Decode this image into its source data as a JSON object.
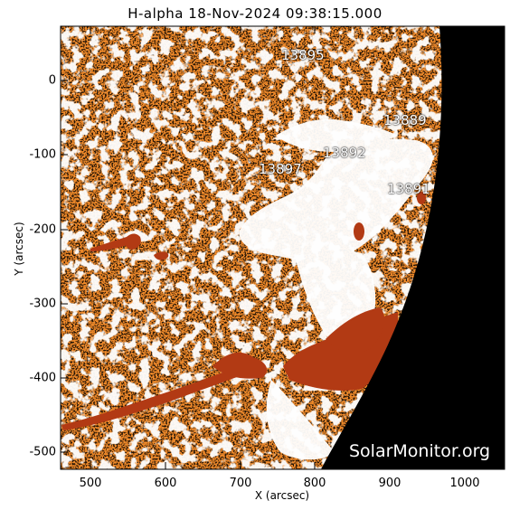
{
  "title": "H-alpha 18-Nov-2024 09:38:15.000",
  "axes": {
    "xlabel": "X (arcsec)",
    "ylabel": "Y (arcsec)",
    "xticks": [
      "500",
      "600",
      "700",
      "800",
      "900",
      "1000"
    ],
    "yticks": [
      "0",
      "-100",
      "-200",
      "-300",
      "-400",
      "-500"
    ]
  },
  "regions": [
    {
      "label": "13895"
    },
    {
      "label": "13889"
    },
    {
      "label": "13892"
    },
    {
      "label": "13897"
    },
    {
      "label": "13891"
    }
  ],
  "watermark": "SolarMonitor.org",
  "colors": {
    "disk": "#f08a2a",
    "filament": "#b23a14",
    "plage": "#ffffff",
    "space": "#000000"
  }
}
